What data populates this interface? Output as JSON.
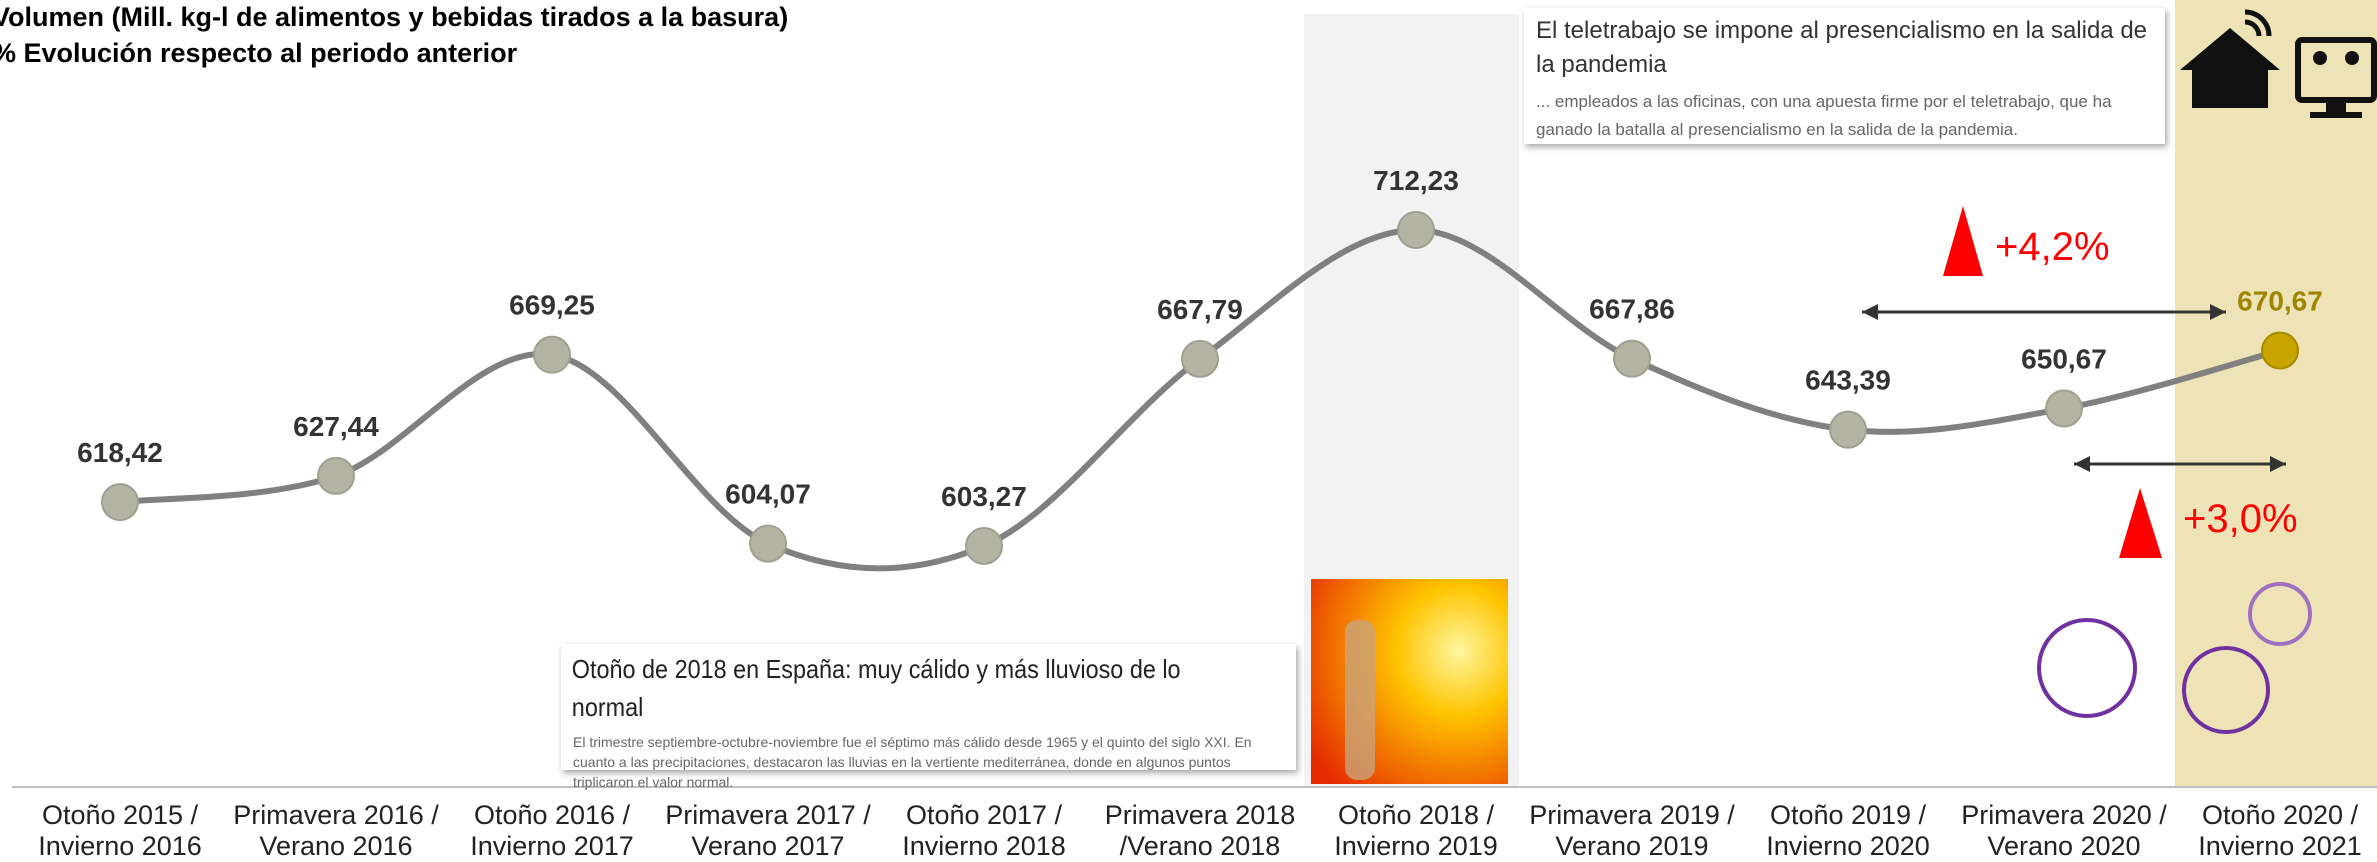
{
  "chart_data": {
    "type": "line",
    "title": "Volumen (Mill. kg-l de alimentos y bebidas tirados a la basura)",
    "subtitle": "% Evolución respecto al periodo anterior",
    "categories": [
      "Otoño 2015 /\nInvierno 2016",
      "Primavera 2016 /\nVerano 2016",
      "Otoño 2016 /\nInvierno 2017",
      "Primavera 2017 /\nVerano 2017",
      "Otoño 2017 /\nInvierno 2018",
      "Primavera  2018\n/Verano 2018",
      "Otoño 2018 /\nInvierno 2019",
      "Primavera 2019 /\nVerano 2019",
      "Otoño 2019 /\nInvierno 2020",
      "Primavera 2020 /\nVerano 2020",
      "Otoño 2020 /\nInvierno 2021"
    ],
    "series": [
      {
        "color": "#808080",
        "values": [
          618.42,
          627.44,
          669.25,
          604.07,
          603.27,
          667.79,
          712.23,
          667.86,
          643.39,
          650.67,
          670.67
        ],
        "value_labels": [
          "618,42",
          "627,44",
          "669,25",
          "604,07",
          "603,27",
          "667,79",
          "712,23",
          "667,86",
          "643,39",
          "650,67",
          "670,67"
        ]
      }
    ],
    "annotations": {
      "change_year": "+4,2%",
      "change_period": "+3,0%",
      "telework_title": "El teletrabajo se impone al presencialismo en la salida de la pandemia",
      "telework_text": "... empleados a las oficinas, con una apuesta firme por el teletrabajo, que ha ganado la batalla al presencialismo en la salida de la pandemia.",
      "weather_title": "Otoño de 2018 en España: muy cálido y más lluvioso de lo normal",
      "weather_text": "El trimestre septiembre-octubre-noviembre fue el séptimo más cálido desde 1965 y el quinto del siglo XXI. En cuanto a las precipitaciones, destacaron las lluvias en la vertiente mediterránea, donde en algunos puntos triplicaron el valor normal."
    }
  }
}
